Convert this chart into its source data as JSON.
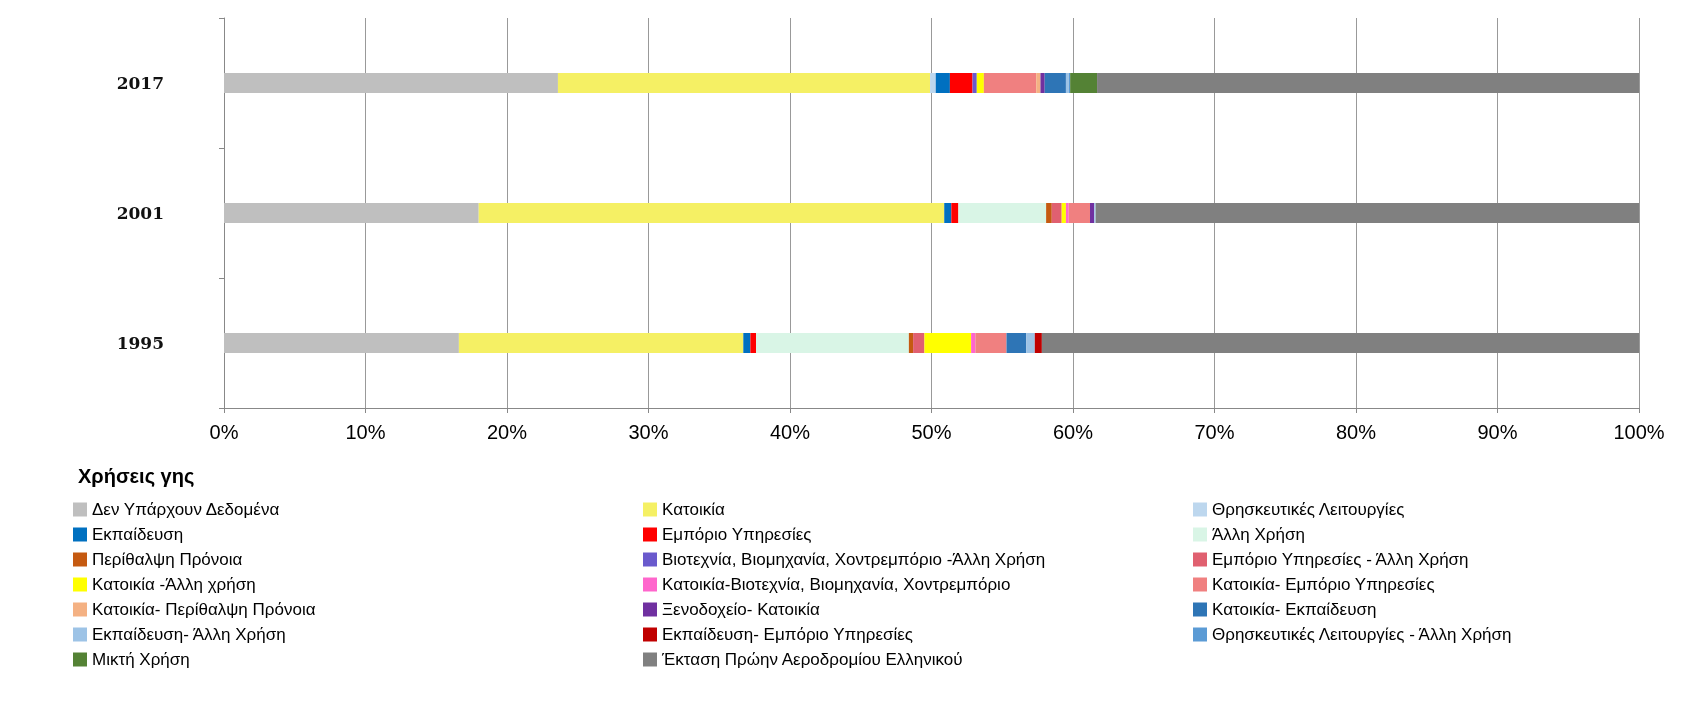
{
  "chart_data": {
    "type": "bar",
    "orientation": "horizontal",
    "stacked": true,
    "categories": [
      "2017",
      "2001",
      "1995"
    ],
    "legend_title": "Χρήσεις γης",
    "legend": "bottom",
    "grid": "x",
    "xlim": [
      0,
      100
    ],
    "xticks": [
      {
        "value": 0,
        "label": "0%"
      },
      {
        "value": 10,
        "label": "10%"
      },
      {
        "value": 20,
        "label": "20%"
      },
      {
        "value": 30,
        "label": "30%"
      },
      {
        "value": 40,
        "label": "40%"
      },
      {
        "value": 50,
        "label": "50%"
      },
      {
        "value": 60,
        "label": "60%"
      },
      {
        "value": 70,
        "label": "70%"
      },
      {
        "value": 80,
        "label": "80%"
      },
      {
        "value": 90,
        "label": "90%"
      },
      {
        "value": 100,
        "label": "100%"
      }
    ],
    "series": [
      {
        "name": "Δεν Υπάρχουν Δεδομένα",
        "color": "#bfbfbf",
        "values": [
          23.6,
          18.0,
          16.6
        ]
      },
      {
        "name": "Κατοικία",
        "color": "#f5f064",
        "values": [
          26.3,
          32.9,
          20.1
        ]
      },
      {
        "name": "Θρησκευτικές Λειτουργίες",
        "color": "#bdd7ee",
        "values": [
          0.4,
          0,
          0
        ]
      },
      {
        "name": "Εκπαίδευση",
        "color": "#0070c0",
        "values": [
          1.0,
          0.5,
          0.5
        ]
      },
      {
        "name": "Εμπόριο Υπηρεσίες",
        "color": "#ff0000",
        "values": [
          1.6,
          0.5,
          0.4
        ]
      },
      {
        "name": "Άλλη Χρήση",
        "color": "#d9f5e6",
        "values": [
          0,
          6.2,
          10.8
        ]
      },
      {
        "name": "Περίθαλψη Πρόνοια",
        "color": "#c55a11",
        "values": [
          0,
          0.4,
          0.3
        ]
      },
      {
        "name": "Βιοτεχνία, Βιομηχανία, Χοντρεμπόριο -Άλλη Χρήση",
        "color": "#6a5acd",
        "values": [
          0.3,
          0,
          0
        ]
      },
      {
        "name": "Εμπόριο Υπηρεσίες - Άλλη Χρήση",
        "color": "#e06070",
        "values": [
          0,
          0.7,
          0.8
        ]
      },
      {
        "name": "Κατοικία -Άλλη χρήση",
        "color": "#ffff00",
        "values": [
          0.5,
          0.3,
          3.3
        ]
      },
      {
        "name": "Κατοικία-Βιοτεχνία, Βιομηχανία, Χοντρεμπόριο",
        "color": "#ff66cc",
        "values": [
          0,
          0.2,
          0.3
        ]
      },
      {
        "name": "Κατοικία- Εμπόριο Υπηρεσίες",
        "color": "#f08080",
        "values": [
          3.7,
          1.5,
          2.2
        ]
      },
      {
        "name": "Κατοικία- Περίθαλψη Πρόνοια",
        "color": "#f4b183",
        "values": [
          0.3,
          0,
          0
        ]
      },
      {
        "name": "Ξενοδοχείο- Κατοικία",
        "color": "#7030a0",
        "values": [
          0.3,
          0.3,
          0
        ]
      },
      {
        "name": "Κατοικία- Εκπαίδευση",
        "color": "#2e75b6",
        "values": [
          1.5,
          0,
          1.4
        ]
      },
      {
        "name": "Εκπαίδευση- Άλλη Χρήση",
        "color": "#9dc3e6",
        "values": [
          0.2,
          0.1,
          0.6
        ]
      },
      {
        "name": "Εκπαίδευση- Εμπόριο Υπηρεσίες",
        "color": "#c00000",
        "values": [
          0,
          0,
          0.5
        ]
      },
      {
        "name": "Θρησκευτικές Λειτουργίες - Άλλη Χρήση",
        "color": "#5b9bd5",
        "values": [
          0.1,
          0,
          0
        ]
      },
      {
        "name": "Μικτή Χρήση",
        "color": "#548235",
        "values": [
          1.9,
          0,
          0
        ]
      },
      {
        "name": "Έκταση Πρώην Αεροδρομίου Ελληνικού",
        "color": "#808080",
        "values": [
          38.3,
          38.4,
          42.2
        ]
      }
    ]
  }
}
